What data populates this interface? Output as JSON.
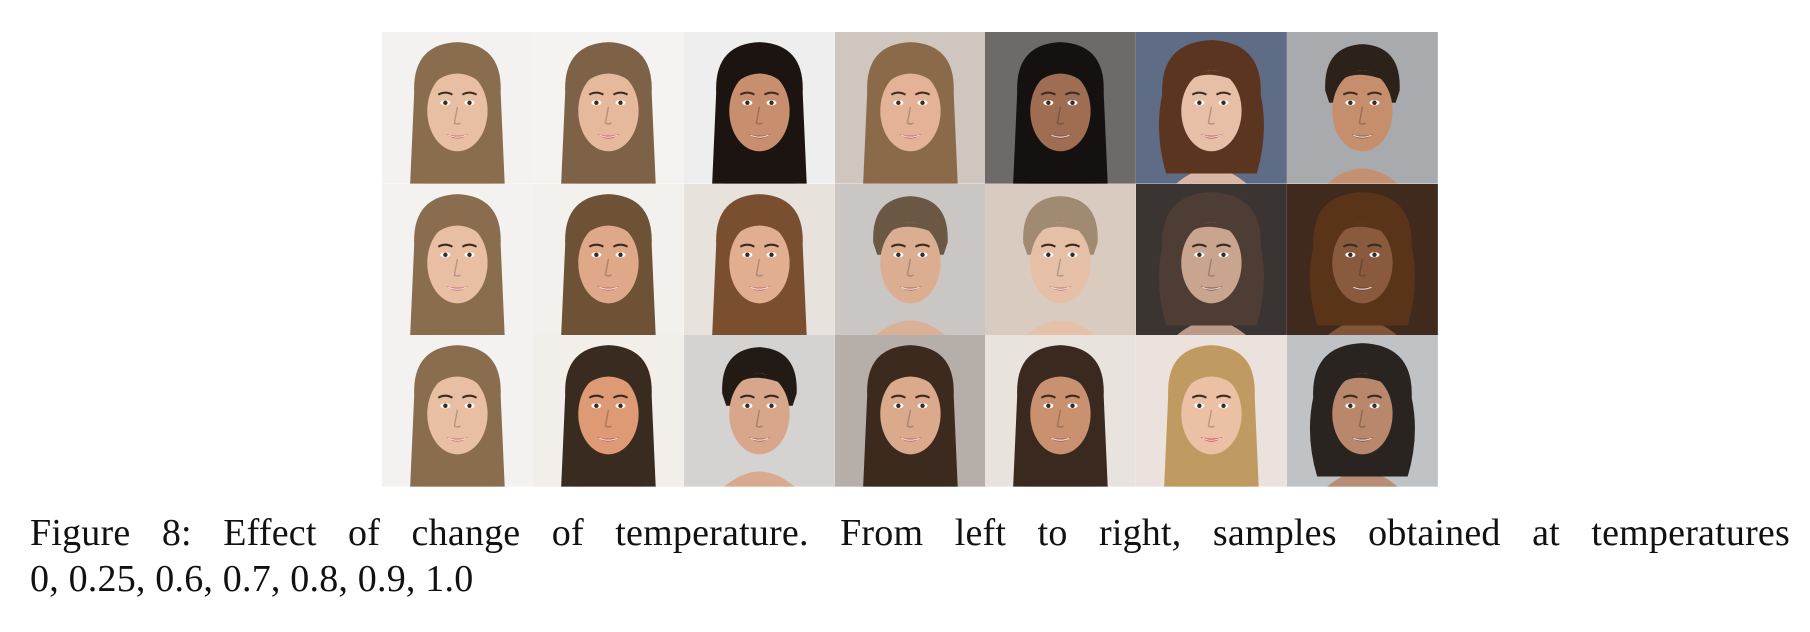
{
  "figure": {
    "caption_line1": "Figure 8: Effect of change of temperature. From left to right, samples obtained at temperatures",
    "caption_line2": "0, 0.25, 0.6, 0.7, 0.8, 0.9, 1.0",
    "rows": 3,
    "columns": 7,
    "tiles": [
      [
        {
          "bg": "#f4f2f0",
          "hair": "#8a6d4f",
          "skin": "#e9bfa3",
          "lips": "#c8606b",
          "hair_style": "long"
        },
        {
          "bg": "#f5f3f1",
          "hair": "#7d6247",
          "skin": "#e7b99c",
          "lips": "#c45a66",
          "hair_style": "long"
        },
        {
          "bg": "#eeeeee",
          "hair": "#1c1410",
          "skin": "#c88f6e",
          "lips": "#a8504f",
          "hair_style": "long"
        },
        {
          "bg": "#cfc6bf",
          "hair": "#8b6a4a",
          "skin": "#e4b397",
          "lips": "#c45d5d",
          "hair_style": "long"
        },
        {
          "bg": "#6e6a6a",
          "hair": "#141110",
          "skin": "#9e6d52",
          "lips": "#7d4a40",
          "hair_style": "long"
        },
        {
          "bg": "#5f6c86",
          "hair": "#5b3520",
          "skin": "#e7bfa6",
          "lips": "#b45a5a",
          "hair_style": "wavy"
        },
        {
          "bg": "#a9aaae",
          "hair": "#2d2219",
          "skin": "#c58e6c",
          "lips": "#8d5247",
          "hair_style": "short"
        }
      ],
      [
        {
          "bg": "#f4f2f0",
          "hair": "#8a6d4f",
          "skin": "#e9bfa3",
          "lips": "#c8606b",
          "hair_style": "long"
        },
        {
          "bg": "#f3f1ee",
          "hair": "#6e5236",
          "skin": "#dfa888",
          "lips": "#c15c5c",
          "hair_style": "long"
        },
        {
          "bg": "#e8e2dc",
          "hair": "#7a4f30",
          "skin": "#e2ae90",
          "lips": "#c45d66",
          "hair_style": "long"
        },
        {
          "bg": "#c9c6c4",
          "hair": "#6b5844",
          "skin": "#dcae91",
          "lips": "#a86060",
          "hair_style": "short"
        },
        {
          "bg": "#d9cbbf",
          "hair": "#a08a71",
          "skin": "#e6c0a6",
          "lips": "#b86a6a",
          "hair_style": "short"
        },
        {
          "bg": "#3a3432",
          "hair": "#4e3d34",
          "skin": "#c9a48f",
          "lips": "#7a4040",
          "hair_style": "wavy"
        },
        {
          "bg": "#3f2a1d",
          "hair": "#5a3418",
          "skin": "#8a5a3e",
          "lips": "#6b3a2a",
          "hair_style": "wavy"
        }
      ],
      [
        {
          "bg": "#f4f2f0",
          "hair": "#8a6d4f",
          "skin": "#e9bfa3",
          "lips": "#c8606b",
          "hair_style": "long"
        },
        {
          "bg": "#f2eeea",
          "hair": "#3a2b20",
          "skin": "#dd9a74",
          "lips": "#b85555",
          "hair_style": "long"
        },
        {
          "bg": "#d5d3d2",
          "hair": "#221a15",
          "skin": "#d8a68a",
          "lips": "#a85a55",
          "hair_style": "short"
        },
        {
          "bg": "#b6aea8",
          "hair": "#3c2a1f",
          "skin": "#dba98c",
          "lips": "#b85a5a",
          "hair_style": "long"
        },
        {
          "bg": "#e9e3de",
          "hair": "#3a291f",
          "skin": "#c9916f",
          "lips": "#a75454",
          "hair_style": "long"
        },
        {
          "bg": "#ece2dd",
          "hair": "#c19a62",
          "skin": "#ecc0a5",
          "lips": "#c8323f",
          "hair_style": "long"
        },
        {
          "bg": "#bfc3c6",
          "hair": "#2a2420",
          "skin": "#b8876c",
          "lips": "#7a4a40",
          "hair_style": "wavy"
        }
      ]
    ]
  }
}
